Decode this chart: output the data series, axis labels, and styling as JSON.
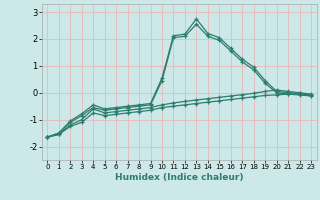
{
  "xlabel": "Humidex (Indice chaleur)",
  "background_color": "#cce8e8",
  "line_color": "#2d7d6e",
  "grid_color": "#e8b8b8",
  "xlim": [
    -0.5,
    23.5
  ],
  "ylim": [
    -2.5,
    3.3
  ],
  "yticks": [
    -2,
    -1,
    0,
    1,
    2,
    3
  ],
  "xticks": [
    0,
    1,
    2,
    3,
    4,
    5,
    6,
    7,
    8,
    9,
    10,
    11,
    12,
    13,
    14,
    15,
    16,
    17,
    18,
    19,
    20,
    21,
    22,
    23
  ],
  "line1_x": [
    0,
    1,
    2,
    3,
    4,
    5,
    6,
    7,
    8,
    9,
    10,
    11,
    12,
    13,
    14,
    15,
    16,
    17,
    18,
    19,
    20,
    21,
    22,
    23
  ],
  "line1_y": [
    -1.65,
    -1.55,
    -1.25,
    -1.1,
    -0.75,
    -0.85,
    -0.8,
    -0.75,
    -0.7,
    -0.65,
    -0.55,
    -0.5,
    -0.45,
    -0.4,
    -0.35,
    -0.3,
    -0.25,
    -0.2,
    -0.15,
    -0.1,
    -0.08,
    -0.05,
    -0.05,
    -0.1
  ],
  "line2_x": [
    0,
    1,
    2,
    3,
    4,
    5,
    6,
    7,
    8,
    9,
    10,
    11,
    12,
    13,
    14,
    15,
    16,
    17,
    18,
    19,
    20,
    21,
    22,
    23
  ],
  "line2_y": [
    -1.65,
    -1.55,
    -1.2,
    -1.0,
    -0.6,
    -0.75,
    -0.7,
    -0.65,
    -0.6,
    -0.55,
    -0.45,
    -0.38,
    -0.32,
    -0.27,
    -0.22,
    -0.17,
    -0.12,
    -0.07,
    -0.02,
    0.05,
    0.1,
    0.05,
    0.0,
    -0.05
  ],
  "line3_x": [
    0,
    1,
    2,
    3,
    4,
    5,
    6,
    7,
    8,
    9,
    10,
    11,
    12,
    13,
    14,
    15,
    16,
    17,
    18,
    19,
    20,
    21,
    22,
    23
  ],
  "line3_y": [
    -1.65,
    -1.5,
    -1.1,
    -0.85,
    -0.55,
    -0.65,
    -0.6,
    -0.55,
    -0.5,
    -0.45,
    0.45,
    2.05,
    2.1,
    2.55,
    2.1,
    1.95,
    1.55,
    1.15,
    0.85,
    0.35,
    -0.0,
    -0.05,
    -0.08,
    -0.12
  ],
  "line4_x": [
    0,
    1,
    2,
    3,
    4,
    5,
    6,
    7,
    8,
    9,
    10,
    11,
    12,
    13,
    14,
    15,
    16,
    17,
    18,
    19,
    20,
    21,
    22,
    23
  ],
  "line4_y": [
    -1.65,
    -1.5,
    -1.05,
    -0.78,
    -0.45,
    -0.6,
    -0.55,
    -0.5,
    -0.45,
    -0.4,
    0.55,
    2.12,
    2.18,
    2.75,
    2.2,
    2.05,
    1.65,
    1.25,
    0.95,
    0.45,
    0.05,
    0.0,
    -0.02,
    -0.08
  ]
}
